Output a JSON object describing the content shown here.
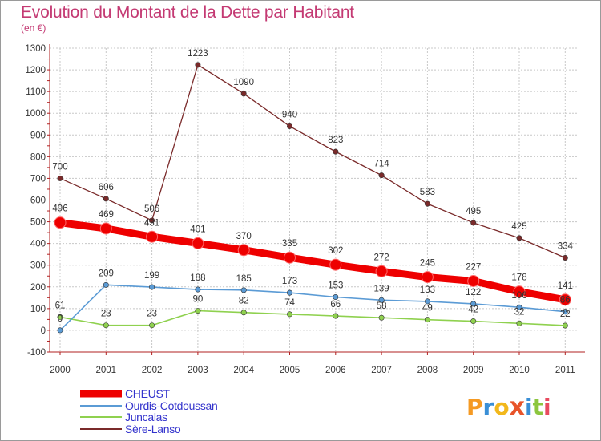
{
  "title": "Evolution du Montant de la Dette par Habitant",
  "unit": "(en €)",
  "logo": {
    "text": "Proxiti",
    "letters": [
      {
        "ch": "P",
        "color": "#f59a23"
      },
      {
        "ch": "r",
        "color": "#3a8fd6"
      },
      {
        "ch": "o",
        "color": "#f2b81c"
      },
      {
        "ch": "x",
        "color": "#e8542a"
      },
      {
        "ch": "i",
        "color": "#3a8fd6"
      },
      {
        "ch": "t",
        "color": "#8cc63f"
      },
      {
        "ch": "i",
        "color": "#e84a5f"
      }
    ]
  },
  "chart_data": {
    "type": "line",
    "title": "Evolution du Montant de la Dette par Habitant",
    "ylabel": "(en €)",
    "xlabel": "",
    "x": [
      "2000",
      "2001",
      "2002",
      "2003",
      "2004",
      "2005",
      "2006",
      "2007",
      "2008",
      "2009",
      "2010",
      "2011"
    ],
    "ylim": [
      -100,
      1300
    ],
    "yticks": [
      -100,
      0,
      100,
      200,
      300,
      400,
      500,
      600,
      700,
      800,
      900,
      1000,
      1100,
      1200,
      1300
    ],
    "grid": true,
    "legend_position": "bottom-left",
    "series": [
      {
        "name": "CHEUST",
        "color": "#ee0000",
        "values": [
          496,
          469,
          431,
          401,
          370,
          335,
          302,
          272,
          245,
          227,
          178,
          141
        ]
      },
      {
        "name": "Ourdis-Cotdoussan",
        "color": "#5b9bd5",
        "values": [
          0,
          209,
          199,
          188,
          185,
          173,
          153,
          139,
          133,
          122,
          106,
          86
        ]
      },
      {
        "name": "Juncalas",
        "color": "#8fd14f",
        "values": [
          61,
          23,
          23,
          90,
          82,
          74,
          66,
          58,
          49,
          42,
          32,
          22
        ]
      },
      {
        "name": "Sère-Lanso",
        "color": "#7a2a2a",
        "values": [
          700,
          606,
          506,
          1223,
          1090,
          940,
          823,
          714,
          583,
          495,
          425,
          334
        ]
      }
    ],
    "data_labels": {
      "CHEUST": [
        "496",
        "469",
        "431",
        "401",
        "370",
        "335",
        "302",
        "272",
        "245",
        "227",
        "178",
        "141"
      ],
      "Ourdis-Cotdoussan": [
        "0",
        "209",
        "199",
        "188",
        "185",
        "173",
        "153",
        "139",
        "133",
        "122",
        "106",
        "86"
      ],
      "Juncalas": [
        "61",
        "23",
        "23",
        "90",
        "82",
        "74",
        "66",
        "58",
        "49",
        "42",
        "32",
        "22"
      ],
      "Sère-Lanso": [
        "700",
        "606",
        "506",
        "1223",
        "1090",
        "940",
        "823",
        "714",
        "583",
        "495",
        "425",
        "334"
      ]
    }
  }
}
